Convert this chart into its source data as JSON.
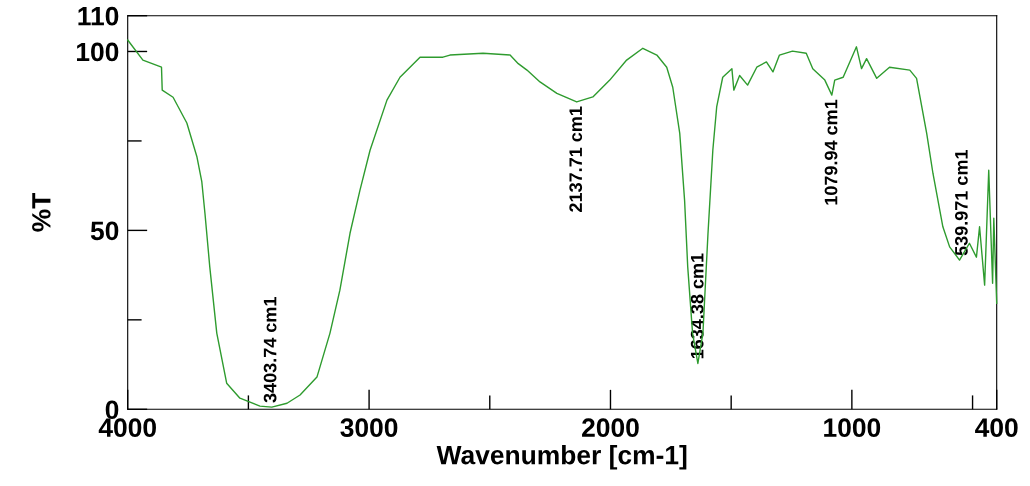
{
  "chart_data": {
    "type": "line",
    "xlabel": "Wavenumber [cm-1]",
    "ylabel": "%T",
    "xlim": [
      4000,
      400
    ],
    "ylim": [
      0,
      110
    ],
    "xticks": [
      4000,
      {
        "value": 3500,
        "label": null
      },
      3000,
      {
        "value": 2500,
        "label": null
      },
      2000,
      {
        "value": 1500,
        "label": null
      },
      1000,
      {
        "value": 500,
        "label": null
      },
      400
    ],
    "yticks": [
      0,
      {
        "value": 25,
        "label": null
      },
      50,
      {
        "value": 75,
        "label": null
      },
      100,
      110
    ],
    "grid": false,
    "marker": "none",
    "line_style": "solid",
    "series": [
      {
        "color": "#2e9b2e",
        "x": [
          4000,
          3937,
          3860,
          3857,
          3812,
          3755,
          3713,
          3693,
          3680,
          3660,
          3631,
          3590,
          3535,
          3452,
          3403,
          3340,
          3286,
          3216,
          3162,
          3121,
          3079,
          3038,
          2996,
          2926,
          2872,
          2789,
          2694,
          2665,
          2528,
          2416,
          2382,
          2346,
          2292,
          2222,
          2140,
          2073,
          2003,
          1933,
          1866,
          1808,
          1767,
          1742,
          1713,
          1693,
          1680,
          1660,
          1638,
          1617,
          1596,
          1576,
          1560,
          1535,
          1497,
          1489,
          1465,
          1432,
          1394,
          1354,
          1327,
          1300,
          1246,
          1189,
          1162,
          1112,
          1083,
          1071,
          1036,
          981,
          960,
          939,
          897,
          844,
          760,
          732,
          690,
          664,
          623,
          595,
          554,
          513,
          484,
          471,
          450,
          433,
          417,
          412,
          400
        ],
        "values": [
          103.2,
          97.6,
          95.6,
          89.2,
          87.2,
          80,
          70.5,
          63.6,
          54.8,
          39.8,
          21.3,
          7.3,
          3.1,
          0.9,
          0.6,
          1.7,
          4,
          9,
          21.3,
          33.3,
          49.2,
          61.2,
          72.4,
          86.4,
          92.8,
          98.4,
          98.4,
          99,
          99.5,
          99,
          96.6,
          94.8,
          91.5,
          88.3,
          85.9,
          87.3,
          92,
          97.6,
          100.9,
          99,
          95.6,
          90,
          77.1,
          58.4,
          39.8,
          21.3,
          12.8,
          21.3,
          49.2,
          72.4,
          84.5,
          92.8,
          95.2,
          89.2,
          93.3,
          90.6,
          95.6,
          97.1,
          94.3,
          99,
          100.1,
          99.5,
          95.2,
          92,
          87.8,
          92,
          92.8,
          101.3,
          95.2,
          98,
          92.5,
          95.6,
          94.8,
          92.5,
          77.1,
          65.9,
          51,
          45.4,
          41.7,
          46.4,
          42.5,
          51,
          34.7,
          66.8,
          35.2,
          53.4,
          29.6
        ]
      }
    ],
    "annotations": [
      {
        "text": "3403.74 cm1",
        "x": 3403.74,
        "y": 0.6
      },
      {
        "text": "2137.71 cm1",
        "x": 2137.71,
        "y": 85.9
      },
      {
        "text": "1634.38 cm1",
        "x": 1634.38,
        "y": 12.8
      },
      {
        "text": "1079.94 cm1",
        "x": 1079.94,
        "y": 87.8
      },
      {
        "text": "539.971 cm1",
        "x": 539.971,
        "y": 41.7
      }
    ]
  }
}
